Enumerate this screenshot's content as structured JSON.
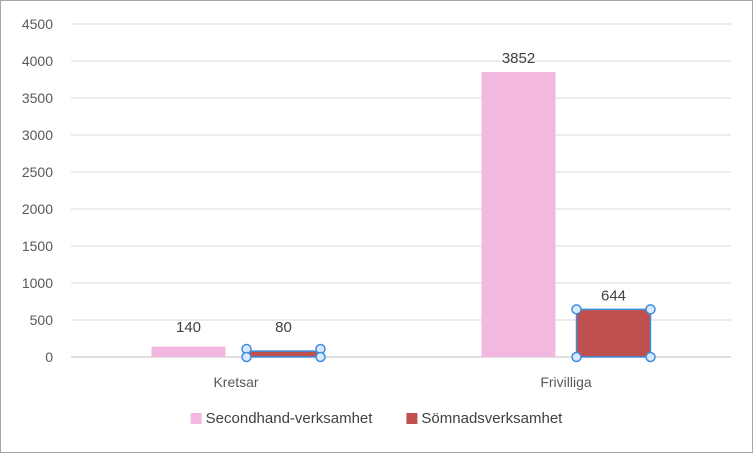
{
  "chart_data": {
    "type": "bar",
    "categories": [
      "Kretsar",
      "Frivilliga"
    ],
    "series": [
      {
        "name": "Secondhand-verksamhet",
        "color": "#f2b8e0",
        "values": [
          140,
          3852
        ]
      },
      {
        "name": "Sömnadsverksamhet",
        "color": "#c0504d",
        "values": [
          80,
          644
        ]
      }
    ],
    "data_labels": [
      [
        "140",
        "3852"
      ],
      [
        "80",
        "644"
      ]
    ],
    "ylim": [
      0,
      4500
    ],
    "yticks": [
      0,
      500,
      1000,
      1500,
      2000,
      2500,
      3000,
      3500,
      4000,
      4500
    ],
    "grid": true,
    "legend": "bottom",
    "selected_series": 1,
    "selection_color": "#3c8ee0",
    "title": "",
    "xlabel": "",
    "ylabel": ""
  }
}
